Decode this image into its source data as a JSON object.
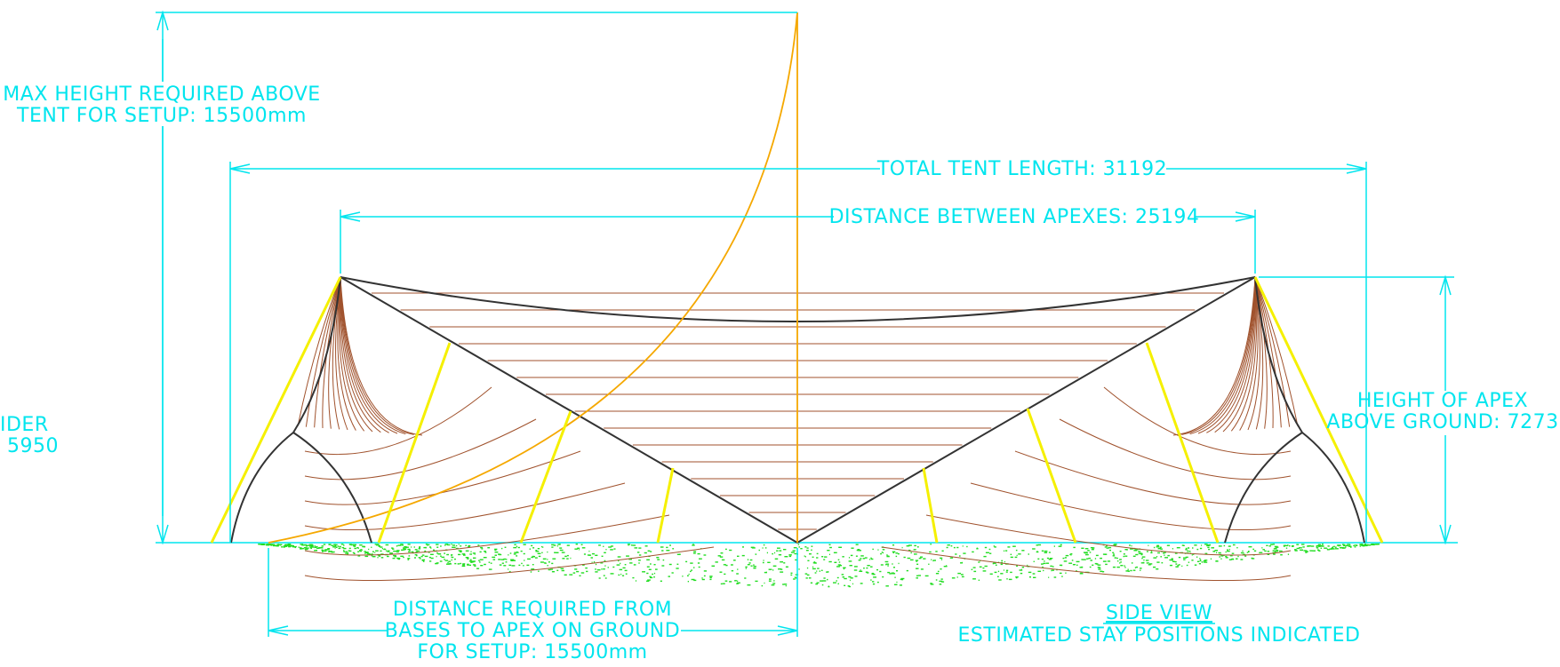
{
  "drawing": {
    "colors": {
      "dimension": "#00e5ee",
      "outline": "#333333",
      "fabric": "#a0522d",
      "stays": "#f5f000",
      "setup_arc": "#f5a800",
      "ground": "#22dd22"
    },
    "labels": {
      "max_height_line1": "MAX HEIGHT REQUIRED ABOVE",
      "max_height_line2": "TENT FOR SETUP: 15500mm",
      "total_length": "TOTAL TENT LENGTH: 31192",
      "apex_distance": "DISTANCE BETWEEN APEXES: 25194",
      "apex_height_line1": "HEIGHT OF APEX",
      "apex_height_line2": "ABOVE GROUND: 7273",
      "cut_left_line1": "IDER",
      "cut_left_line2": "5950",
      "ground_distance_line1": "DISTANCE REQUIRED FROM",
      "ground_distance_line2": "BASES TO APEX ON GROUND",
      "ground_distance_line3": "FOR SETUP: 15500mm",
      "view_title": "SIDE VIEW",
      "view_subtitle": "ESTIMATED STAY POSITIONS INDICATED"
    }
  }
}
